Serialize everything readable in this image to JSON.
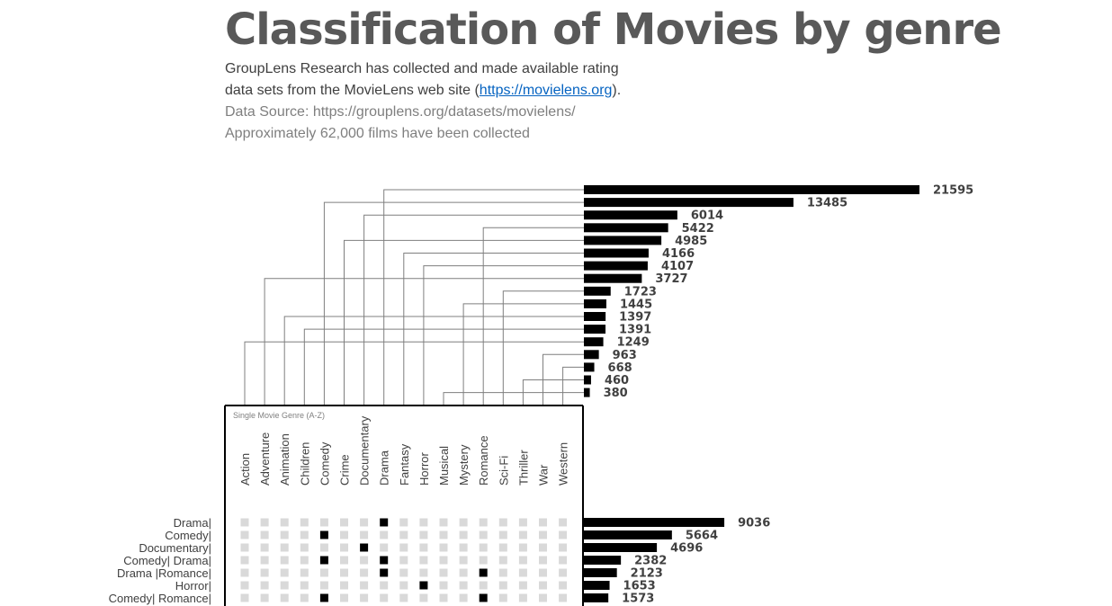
{
  "header": {
    "title": "Classification of Movies by genre",
    "desc_line1": "GroupLens Research has collected and made available rating",
    "desc_line2_pre": "data sets from the MovieLens web site (",
    "desc_link": "https://movielens.org",
    "desc_line2_post": ").",
    "desc_line3": "Data Source: https://grouplens.org/datasets/movielens/",
    "desc_line4": "Approximately 62,000 films have been collected"
  },
  "chart_data": {
    "type": "bar",
    "matrix_title": "Single  Movie Genre (A-Z)",
    "genres": [
      "Action",
      "Adventure",
      "Animation",
      "Children",
      "Comedy",
      "Crime",
      "Documentary",
      "Drama",
      "Fantasy",
      "Horror",
      "Musical",
      "Mystery",
      "Romance",
      "Sci-Fi",
      "Thriller",
      "War",
      "Western"
    ],
    "genre_totals_sorted": [
      {
        "genre": "Drama",
        "value": 21595
      },
      {
        "genre": "Comedy",
        "value": 13485
      },
      {
        "genre": "Documentary",
        "value": 6014
      },
      {
        "genre": "Romance",
        "value": 5422
      },
      {
        "genre": "Crime",
        "value": 4985
      },
      {
        "genre": "Fantasy",
        "value": 4166
      },
      {
        "genre": "Horror",
        "value": 4107
      },
      {
        "genre": "Adventure",
        "value": 3727
      },
      {
        "genre": "Sci-Fi",
        "value": 1723
      },
      {
        "genre": "Mystery",
        "value": 1445
      },
      {
        "genre": "Animation",
        "value": 1397
      },
      {
        "genre": "Children",
        "value": 1391
      },
      {
        "genre": "Action",
        "value": 1249
      },
      {
        "genre": "War",
        "value": 963
      },
      {
        "genre": "Western",
        "value": 668
      },
      {
        "genre": "Thriller",
        "value": 460
      },
      {
        "genre": "Musical",
        "value": 380
      }
    ],
    "combinations": [
      {
        "label": "Drama|",
        "genres": [
          "Drama"
        ],
        "value": 9036
      },
      {
        "label": "Comedy|",
        "genres": [
          "Comedy"
        ],
        "value": 5664
      },
      {
        "label": "Documentary|",
        "genres": [
          "Documentary"
        ],
        "value": 4696
      },
      {
        "label": "Comedy| Drama|",
        "genres": [
          "Comedy",
          "Drama"
        ],
        "value": 2382
      },
      {
        "label": "Drama |Romance|",
        "genres": [
          "Drama",
          "Romance"
        ],
        "value": 2123
      },
      {
        "label": "Horror|",
        "genres": [
          "Horror"
        ],
        "value": 1653
      },
      {
        "label": "Comedy| Romance|",
        "genres": [
          "Comedy",
          "Romance"
        ],
        "value": 1573
      }
    ],
    "colors": {
      "bar": "#000000",
      "inactive_dot": "#d9d9d9",
      "active_dot": "#000000",
      "connector": "#7f7f7f",
      "label": "#404040",
      "matrix_title": "#808080"
    }
  }
}
